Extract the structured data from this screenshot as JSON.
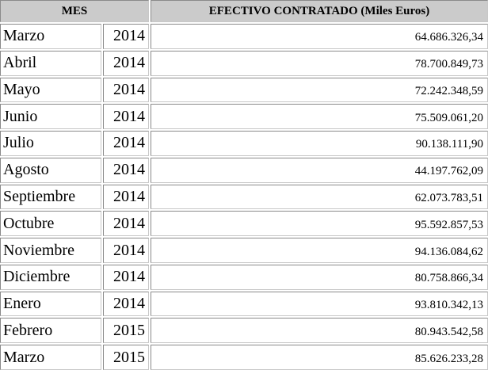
{
  "table": {
    "header": [
      "MES",
      "EFECTIVO CONTRATADO (Miles Euros)"
    ],
    "rows": [
      [
        "Marzo",
        "2014",
        "64.686.326,34"
      ],
      [
        "Abril",
        "2014",
        "78.700.849,73"
      ],
      [
        "Mayo",
        "2014",
        "72.242.348,59"
      ],
      [
        "Junio",
        "2014",
        "75.509.061,20"
      ],
      [
        "Julio",
        "2014",
        "90.138.111,90"
      ],
      [
        "Agosto",
        "2014",
        "44.197.762,09"
      ],
      [
        "Septiembre",
        "2014",
        "62.073.783,51"
      ],
      [
        "Octubre",
        "2014",
        "95.592.857,53"
      ],
      [
        "Noviembre",
        "2014",
        "94.136.084,62"
      ],
      [
        "Diciembre",
        "2014",
        "80.758.866,34"
      ],
      [
        "Enero",
        "2014",
        "93.810.342,13"
      ],
      [
        "Febrero",
        "2015",
        "80.943.542,58"
      ],
      [
        "Marzo",
        "2015",
        "85.626.233,28"
      ]
    ]
  }
}
